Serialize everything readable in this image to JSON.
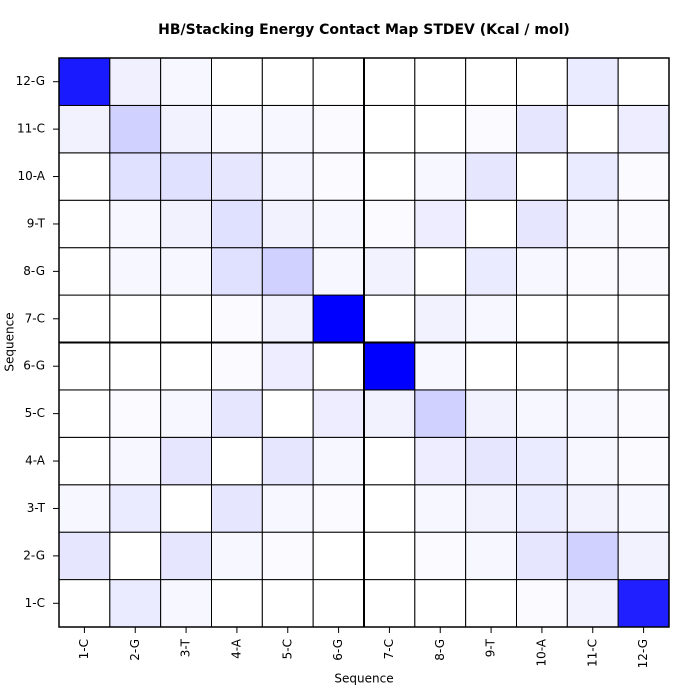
{
  "chart_data": {
    "type": "heatmap",
    "title": "HB/Stacking Energy Contact Map STDEV (Kcal / mol)",
    "x_label": "Sequence",
    "y_label": "Sequence",
    "x": [
      "1-C",
      "2-G",
      "3-T",
      "4-A",
      "5-C",
      "6-G",
      "7-C",
      "8-G",
      "9-T",
      "10-A",
      "11-C",
      "12-G"
    ],
    "y": [
      "1-C",
      "2-G",
      "3-T",
      "4-A",
      "5-C",
      "6-G",
      "7-C",
      "8-G",
      "9-T",
      "10-A",
      "11-C",
      "12-G"
    ],
    "color_low": "#ffffff",
    "color_high": "#0000ff",
    "values": [
      [
        0,
        0.08,
        0.03,
        0,
        0,
        0,
        0,
        0,
        0,
        0.02,
        0.05,
        0.88
      ],
      [
        0.1,
        0,
        0.1,
        0.03,
        0.02,
        0,
        0,
        0.02,
        0.03,
        0.1,
        0.18,
        0.05
      ],
      [
        0.03,
        0.08,
        0,
        0.1,
        0.03,
        0.02,
        0,
        0.03,
        0.05,
        0.08,
        0.05,
        0.03
      ],
      [
        0,
        0.03,
        0.1,
        0,
        0.1,
        0.03,
        0,
        0.07,
        0.1,
        0.08,
        0.03,
        0.02
      ],
      [
        0,
        0.02,
        0.03,
        0.1,
        0,
        0.07,
        0.05,
        0.18,
        0.05,
        0.03,
        0.03,
        0.02
      ],
      [
        0,
        0,
        0,
        0.02,
        0.07,
        0,
        1,
        0.03,
        0,
        0,
        0,
        0
      ],
      [
        0,
        0,
        0,
        0.02,
        0.05,
        1,
        0,
        0.05,
        0.03,
        0,
        0,
        0
      ],
      [
        0,
        0.03,
        0.03,
        0.12,
        0.18,
        0.03,
        0.05,
        0,
        0.08,
        0.03,
        0.02,
        0.02
      ],
      [
        0,
        0.03,
        0.05,
        0.12,
        0.05,
        0.03,
        0.02,
        0.07,
        0,
        0.1,
        0.03,
        0.02
      ],
      [
        0,
        0.12,
        0.12,
        0.1,
        0.04,
        0.02,
        0,
        0.03,
        0.1,
        0,
        0.08,
        0.02
      ],
      [
        0.05,
        0.18,
        0.05,
        0.03,
        0.03,
        0.02,
        0,
        0,
        0.02,
        0.1,
        0,
        0.07
      ],
      [
        0.9,
        0.06,
        0.03,
        0,
        0,
        0,
        0,
        0,
        0,
        0,
        0.08,
        0
      ]
    ]
  }
}
